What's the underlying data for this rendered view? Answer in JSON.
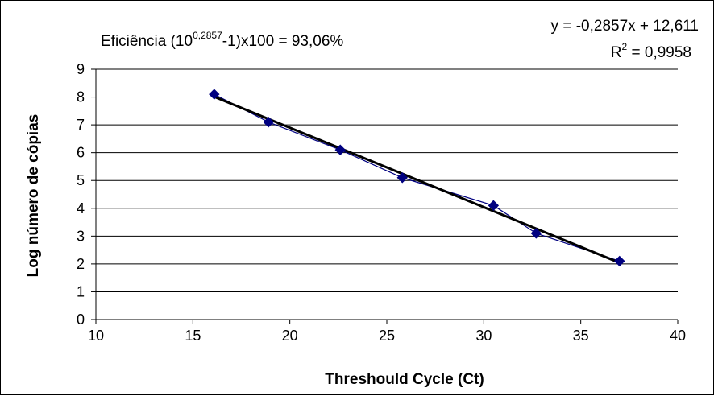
{
  "chart_data": {
    "type": "scatter",
    "xlabel": "Threshould Cycle (Ct)",
    "ylabel": "Log número de cópias",
    "xlim": [
      10,
      40
    ],
    "ylim": [
      0,
      9
    ],
    "x_ticks": [
      "10",
      "15",
      "20",
      "25",
      "30",
      "35",
      "40"
    ],
    "y_ticks": [
      "0",
      "1",
      "2",
      "3",
      "4",
      "5",
      "6",
      "7",
      "8",
      "9"
    ],
    "grid": true,
    "colors": {
      "series": "#000080",
      "trendline": "#000000"
    },
    "series": [
      {
        "x": [
          16.1,
          18.9,
          22.6,
          25.8,
          30.5,
          32.7,
          37.0
        ],
        "y": [
          8.1,
          7.1,
          6.1,
          5.1,
          4.1,
          3.1,
          2.1
        ]
      }
    ],
    "trendline": {
      "slope": -0.2857,
      "intercept": 12.611,
      "x_range": [
        16.1,
        37.0
      ]
    },
    "annotations": {
      "efficiency": {
        "prefix": "Eficiência (10",
        "sup": "0,2857",
        "suffix": "-1)x100 = 93,06%"
      },
      "equation": "y = -0,2857x + 12,611",
      "r2": {
        "prefix": "R",
        "sup": "2",
        "suffix": " = 0,9958"
      }
    }
  }
}
